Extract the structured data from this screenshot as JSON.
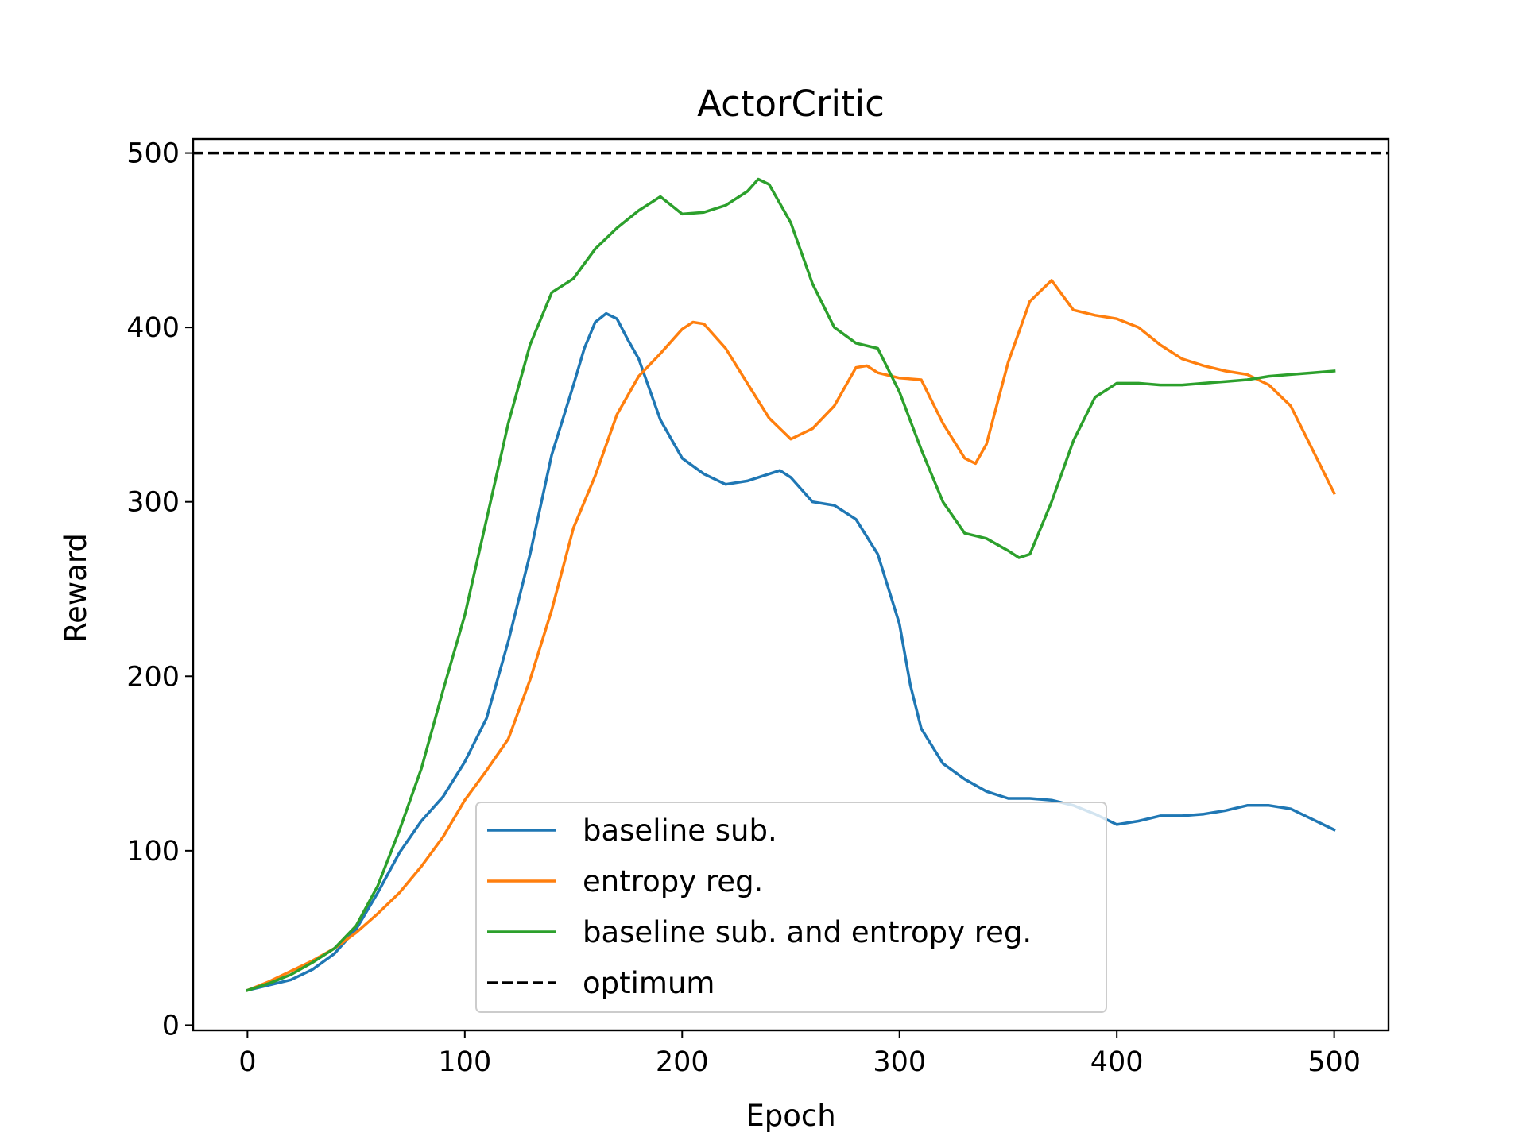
{
  "chart_data": {
    "type": "line",
    "title": "ActorCritic",
    "xlabel": "Epoch",
    "ylabel": "Reward",
    "xlim": [
      -25,
      525
    ],
    "ylim": [
      -3,
      508
    ],
    "xticks": [
      "0",
      "100",
      "200",
      "300",
      "400",
      "500"
    ],
    "yticks": [
      "0",
      "100",
      "200",
      "300",
      "400",
      "500"
    ],
    "grid": false,
    "legend_position": "lower-center",
    "series": [
      {
        "name": "baseline sub.",
        "color": "#1f77b4",
        "x": [
          0,
          10,
          20,
          30,
          40,
          50,
          60,
          70,
          80,
          90,
          100,
          110,
          120,
          130,
          140,
          150,
          155,
          160,
          165,
          170,
          175,
          180,
          190,
          200,
          210,
          220,
          230,
          240,
          245,
          250,
          260,
          270,
          280,
          290,
          300,
          305,
          310,
          320,
          330,
          340,
          350,
          360,
          370,
          380,
          390,
          400,
          410,
          420,
          430,
          440,
          450,
          460,
          470,
          480,
          490,
          500
        ],
        "y": [
          20,
          23,
          26,
          32,
          41,
          55,
          76,
          99,
          117,
          131,
          151,
          176,
          220,
          270,
          327,
          367,
          388,
          403,
          408,
          405,
          393,
          382,
          347,
          325,
          316,
          310,
          312,
          316,
          318,
          314,
          300,
          298,
          290,
          270,
          230,
          195,
          170,
          150,
          141,
          134,
          130,
          130,
          129,
          126,
          121,
          115,
          117,
          120,
          120,
          121,
          123,
          126,
          126,
          124,
          118,
          112
        ]
      },
      {
        "name": "entropy reg.",
        "color": "#ff7f0e",
        "x": [
          0,
          10,
          20,
          30,
          40,
          50,
          60,
          70,
          80,
          90,
          100,
          110,
          120,
          130,
          140,
          150,
          160,
          170,
          180,
          190,
          200,
          205,
          210,
          220,
          230,
          240,
          250,
          260,
          270,
          280,
          285,
          290,
          300,
          310,
          320,
          330,
          335,
          340,
          350,
          360,
          370,
          380,
          390,
          400,
          410,
          420,
          430,
          440,
          450,
          460,
          470,
          480,
          490,
          500
        ],
        "y": [
          20,
          25,
          31,
          37,
          44,
          53,
          64,
          76,
          91,
          108,
          129,
          146,
          164,
          198,
          238,
          285,
          315,
          350,
          372,
          385,
          399,
          403,
          402,
          388,
          368,
          348,
          336,
          342,
          355,
          377,
          378,
          374,
          371,
          370,
          345,
          325,
          322,
          333,
          380,
          415,
          427,
          410,
          407,
          405,
          400,
          390,
          382,
          378,
          375,
          373,
          367,
          355,
          330,
          305
        ]
      },
      {
        "name": "baseline sub. and entropy reg.",
        "color": "#2ca02c",
        "x": [
          0,
          10,
          20,
          30,
          40,
          50,
          60,
          70,
          80,
          90,
          100,
          110,
          120,
          130,
          140,
          150,
          160,
          170,
          180,
          190,
          195,
          200,
          210,
          220,
          230,
          235,
          240,
          250,
          260,
          270,
          280,
          290,
          300,
          310,
          320,
          330,
          340,
          350,
          355,
          360,
          370,
          380,
          390,
          400,
          410,
          420,
          430,
          440,
          450,
          460,
          470,
          480,
          490,
          500
        ],
        "y": [
          20,
          24,
          29,
          36,
          44,
          57,
          80,
          112,
          147,
          192,
          235,
          290,
          345,
          390,
          420,
          428,
          445,
          457,
          467,
          475,
          470,
          465,
          466,
          470,
          478,
          485,
          482,
          460,
          425,
          400,
          391,
          388,
          363,
          330,
          300,
          282,
          279,
          272,
          268,
          270,
          300,
          335,
          360,
          368,
          368,
          367,
          367,
          368,
          369,
          370,
          372,
          373,
          374,
          375
        ]
      },
      {
        "name": "optimum",
        "color": "#000000",
        "dashed": true,
        "x": [
          -25,
          525
        ],
        "y": [
          500,
          500
        ]
      }
    ]
  }
}
